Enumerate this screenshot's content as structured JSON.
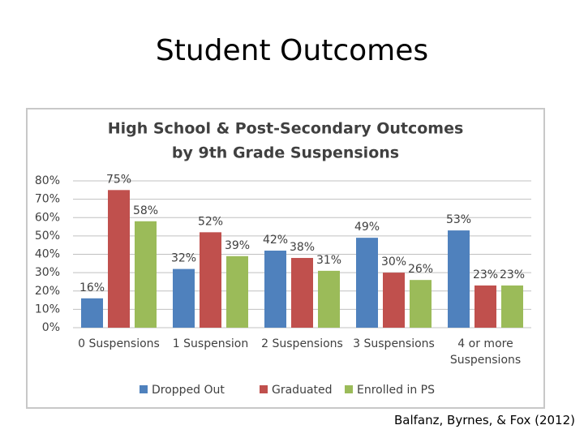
{
  "slide_title": "Student Outcomes",
  "citation": "Balfanz, Byrnes, & Fox (2012)",
  "chart_data": {
    "type": "bar",
    "title": "High School & Post-Secondary Outcomes",
    "subtitle": "by 9th Grade Suspensions",
    "categories": [
      "0 Suspensions",
      "1 Suspension",
      "2 Suspensions",
      "3 Suspensions",
      "4 or more Suspensions"
    ],
    "series": [
      {
        "name": "Dropped Out",
        "color": "#4f81bd",
        "values": [
          16,
          32,
          42,
          49,
          53
        ],
        "value_labels": [
          "16%",
          "32%",
          "42%",
          "49%",
          "53%"
        ]
      },
      {
        "name": "Graduated",
        "color": "#c0504d",
        "values": [
          75,
          52,
          38,
          30,
          23
        ],
        "value_labels": [
          "75%",
          "52%",
          "38%",
          "30%",
          "23%"
        ]
      },
      {
        "name": "Enrolled in PS",
        "color": "#9bbb59",
        "values": [
          58,
          39,
          31,
          26,
          23
        ],
        "value_labels": [
          "58%",
          "39%",
          "31%",
          "26%",
          "23%"
        ]
      }
    ],
    "ylim": [
      0,
      80
    ],
    "yticks": [
      {
        "value": 0,
        "label": "0%"
      },
      {
        "value": 10,
        "label": "10%"
      },
      {
        "value": 20,
        "label": "20%"
      },
      {
        "value": 30,
        "label": "30%"
      },
      {
        "value": 40,
        "label": "40%"
      },
      {
        "value": 50,
        "label": "50%"
      },
      {
        "value": 60,
        "label": "60%"
      },
      {
        "value": 70,
        "label": "70%"
      },
      {
        "value": 80,
        "label": "80%"
      }
    ],
    "grid": true,
    "legend": "bottom"
  }
}
